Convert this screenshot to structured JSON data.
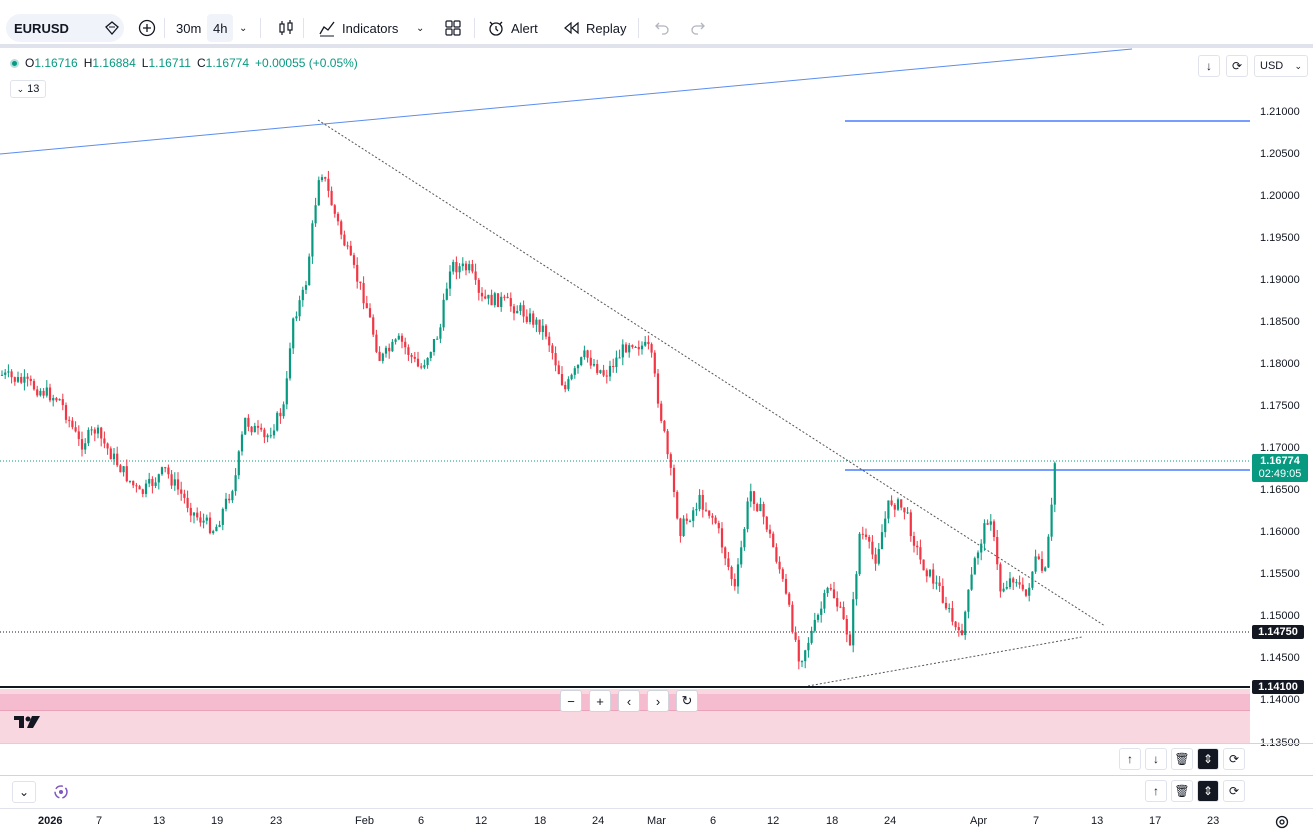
{
  "toolbar": {
    "symbol": "EURUSD",
    "interval_30m": "30m",
    "interval_4h": "4h",
    "indicators": "Indicators",
    "alert": "Alert",
    "replay": "Replay"
  },
  "legend": {
    "o_label": "O",
    "o": "1.16716",
    "h_label": "H",
    "h": "1.16884",
    "l_label": "L",
    "l": "1.16711",
    "c_label": "C",
    "c": "1.16774",
    "change": "+0.00055 (+0.05%)",
    "indicator_count": "13"
  },
  "currency": "USD",
  "price_axis": {
    "ticks": [
      "1.21000",
      "1.20500",
      "1.20000",
      "1.19500",
      "1.19000",
      "1.18500",
      "1.18000",
      "1.17500",
      "1.17000",
      "1.16500",
      "1.16000",
      "1.15500",
      "1.15000",
      "1.14500",
      "1.14000",
      "1.13500"
    ],
    "current_price": "1.16774",
    "countdown": "02:49:05",
    "level_1": "1.14750",
    "level_2": "1.14100"
  },
  "time_axis": [
    "2026",
    "7",
    "13",
    "19",
    "23",
    "Feb",
    "6",
    "12",
    "18",
    "24",
    "Mar",
    "6",
    "12",
    "18",
    "24",
    "Apr",
    "7",
    "13",
    "17",
    "23"
  ],
  "colors": {
    "up": "#089981",
    "down": "#f23645",
    "trendline": "#2962ff",
    "accent": "#089981"
  },
  "icons": [
    "diamond-icon",
    "plus-circle-icon",
    "candles-icon",
    "indicators-icon",
    "layout-icon",
    "alert-icon",
    "replay-icon",
    "undo-icon",
    "redo-icon",
    "gear-icon"
  ]
}
